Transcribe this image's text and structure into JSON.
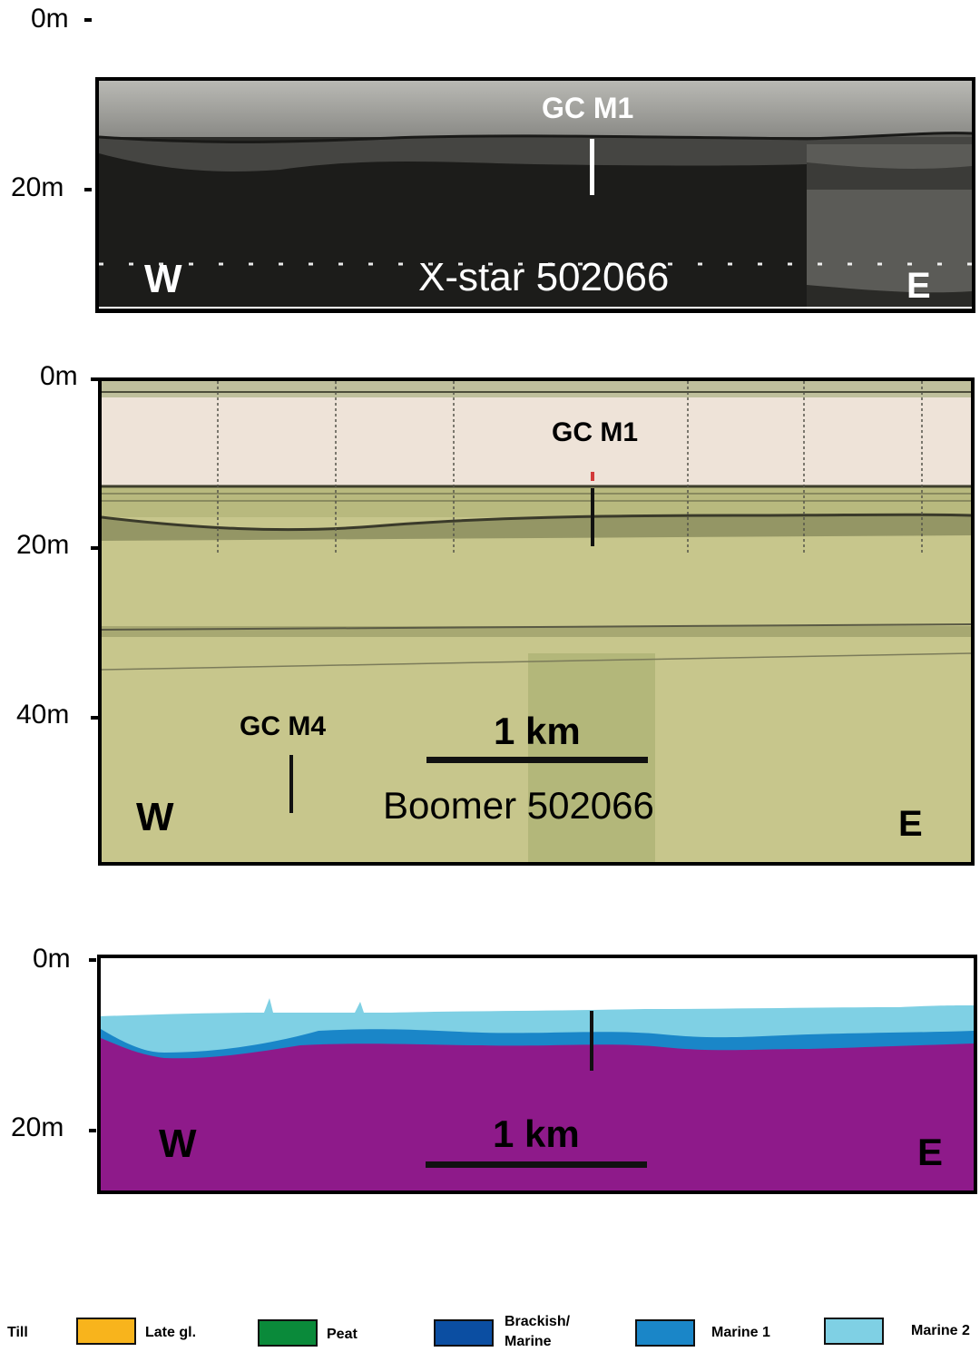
{
  "xstar": {
    "depth_labels": [
      "0m",
      "20m"
    ],
    "core_label": "GC M1",
    "title": "X-star 502066",
    "west": "W",
    "east": "E"
  },
  "boomer": {
    "depth_labels": [
      "0m",
      "20m",
      "40m"
    ],
    "core_label_1": "GC M1",
    "core_label_4": "GC M4",
    "scale_label": "1 km",
    "title": "Boomer 502066",
    "west": "W",
    "east": "E"
  },
  "interp": {
    "depth_labels": [
      "0m",
      "20m"
    ],
    "scale_label": "1 km",
    "west": "W",
    "east": "E"
  },
  "legend": {
    "till": "Till",
    "late_gl": "Late gl.",
    "peat": "Peat",
    "brackish_marine_1": "Brackish/",
    "brackish_marine_2": "Marine",
    "marine1": "Marine 1",
    "marine2": "Marine 2"
  },
  "colors": {
    "late_gl": "#f8b41c",
    "peat": "#0a8a3a",
    "brackish_marine": "#0b4ea2",
    "marine1": "#1a86c8",
    "marine2": "#7fd0e4",
    "till": "#8e1a8a"
  }
}
